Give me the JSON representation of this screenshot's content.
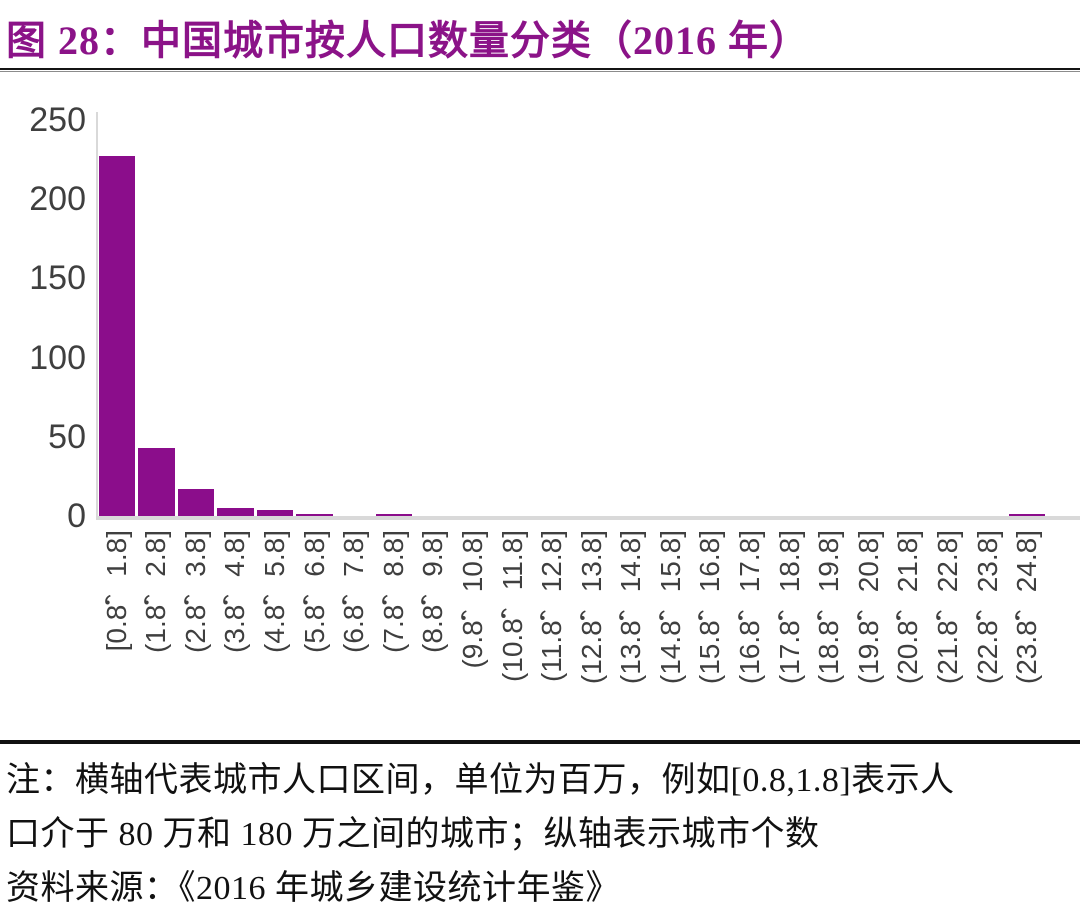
{
  "figure": {
    "title": "图 28：中国城市按人口数量分类（2016 年）"
  },
  "chart_data": {
    "type": "bar",
    "title": "中国城市按人口数量分类（2016 年）",
    "categories": [
      "[0.8，1.8]",
      "(1.8，2.8]",
      "(2.8，3.8]",
      "(3.8，4.8]",
      "(4.8，5.8]",
      "(5.8，6.8]",
      "(6.8，7.8]",
      "(7.8，8.8]",
      "(8.8，9.8]",
      "(9.8，10.8]",
      "(10.8，11.8]",
      "(11.8，12.8]",
      "(12.8，13.8]",
      "(13.8，14.8]",
      "(14.8，15.8]",
      "(15.8，16.8]",
      "(16.8，17.8]",
      "(17.8，18.8]",
      "(18.8，19.8]",
      "(19.8，20.8]",
      "(20.8，21.8]",
      "(21.8，22.8]",
      "(22.8，23.8]",
      "(23.8，24.8]"
    ],
    "values": [
      227,
      43,
      17,
      5,
      4,
      1,
      0,
      1,
      0,
      0,
      0,
      0,
      0,
      0,
      0,
      0,
      0,
      0,
      0,
      0,
      0,
      0,
      0,
      1
    ],
    "xlabel": "",
    "ylabel": "",
    "ylim": [
      0,
      250
    ],
    "yticks": [
      0,
      50,
      100,
      150,
      200,
      250
    ],
    "grid": "off",
    "legend": "none",
    "bar_color": "#8B0D8B",
    "axis_line_color": "#d9d9d9",
    "tick_label_color": "#3f3f3f"
  },
  "notes": {
    "line1": "注：横轴代表城市人口区间，单位为百万，例如[0.8,1.8]表示人",
    "line2": "口介于 80 万和 180 万之间的城市；纵轴表示城市个数",
    "line3": "资料来源：《2016 年城乡建设统计年鉴》"
  },
  "colors": {
    "title": "#8B1388",
    "bar": "#8B0D8B",
    "axis": "#d9d9d9",
    "rule_dark": "#141414",
    "note_text": "#111111"
  }
}
